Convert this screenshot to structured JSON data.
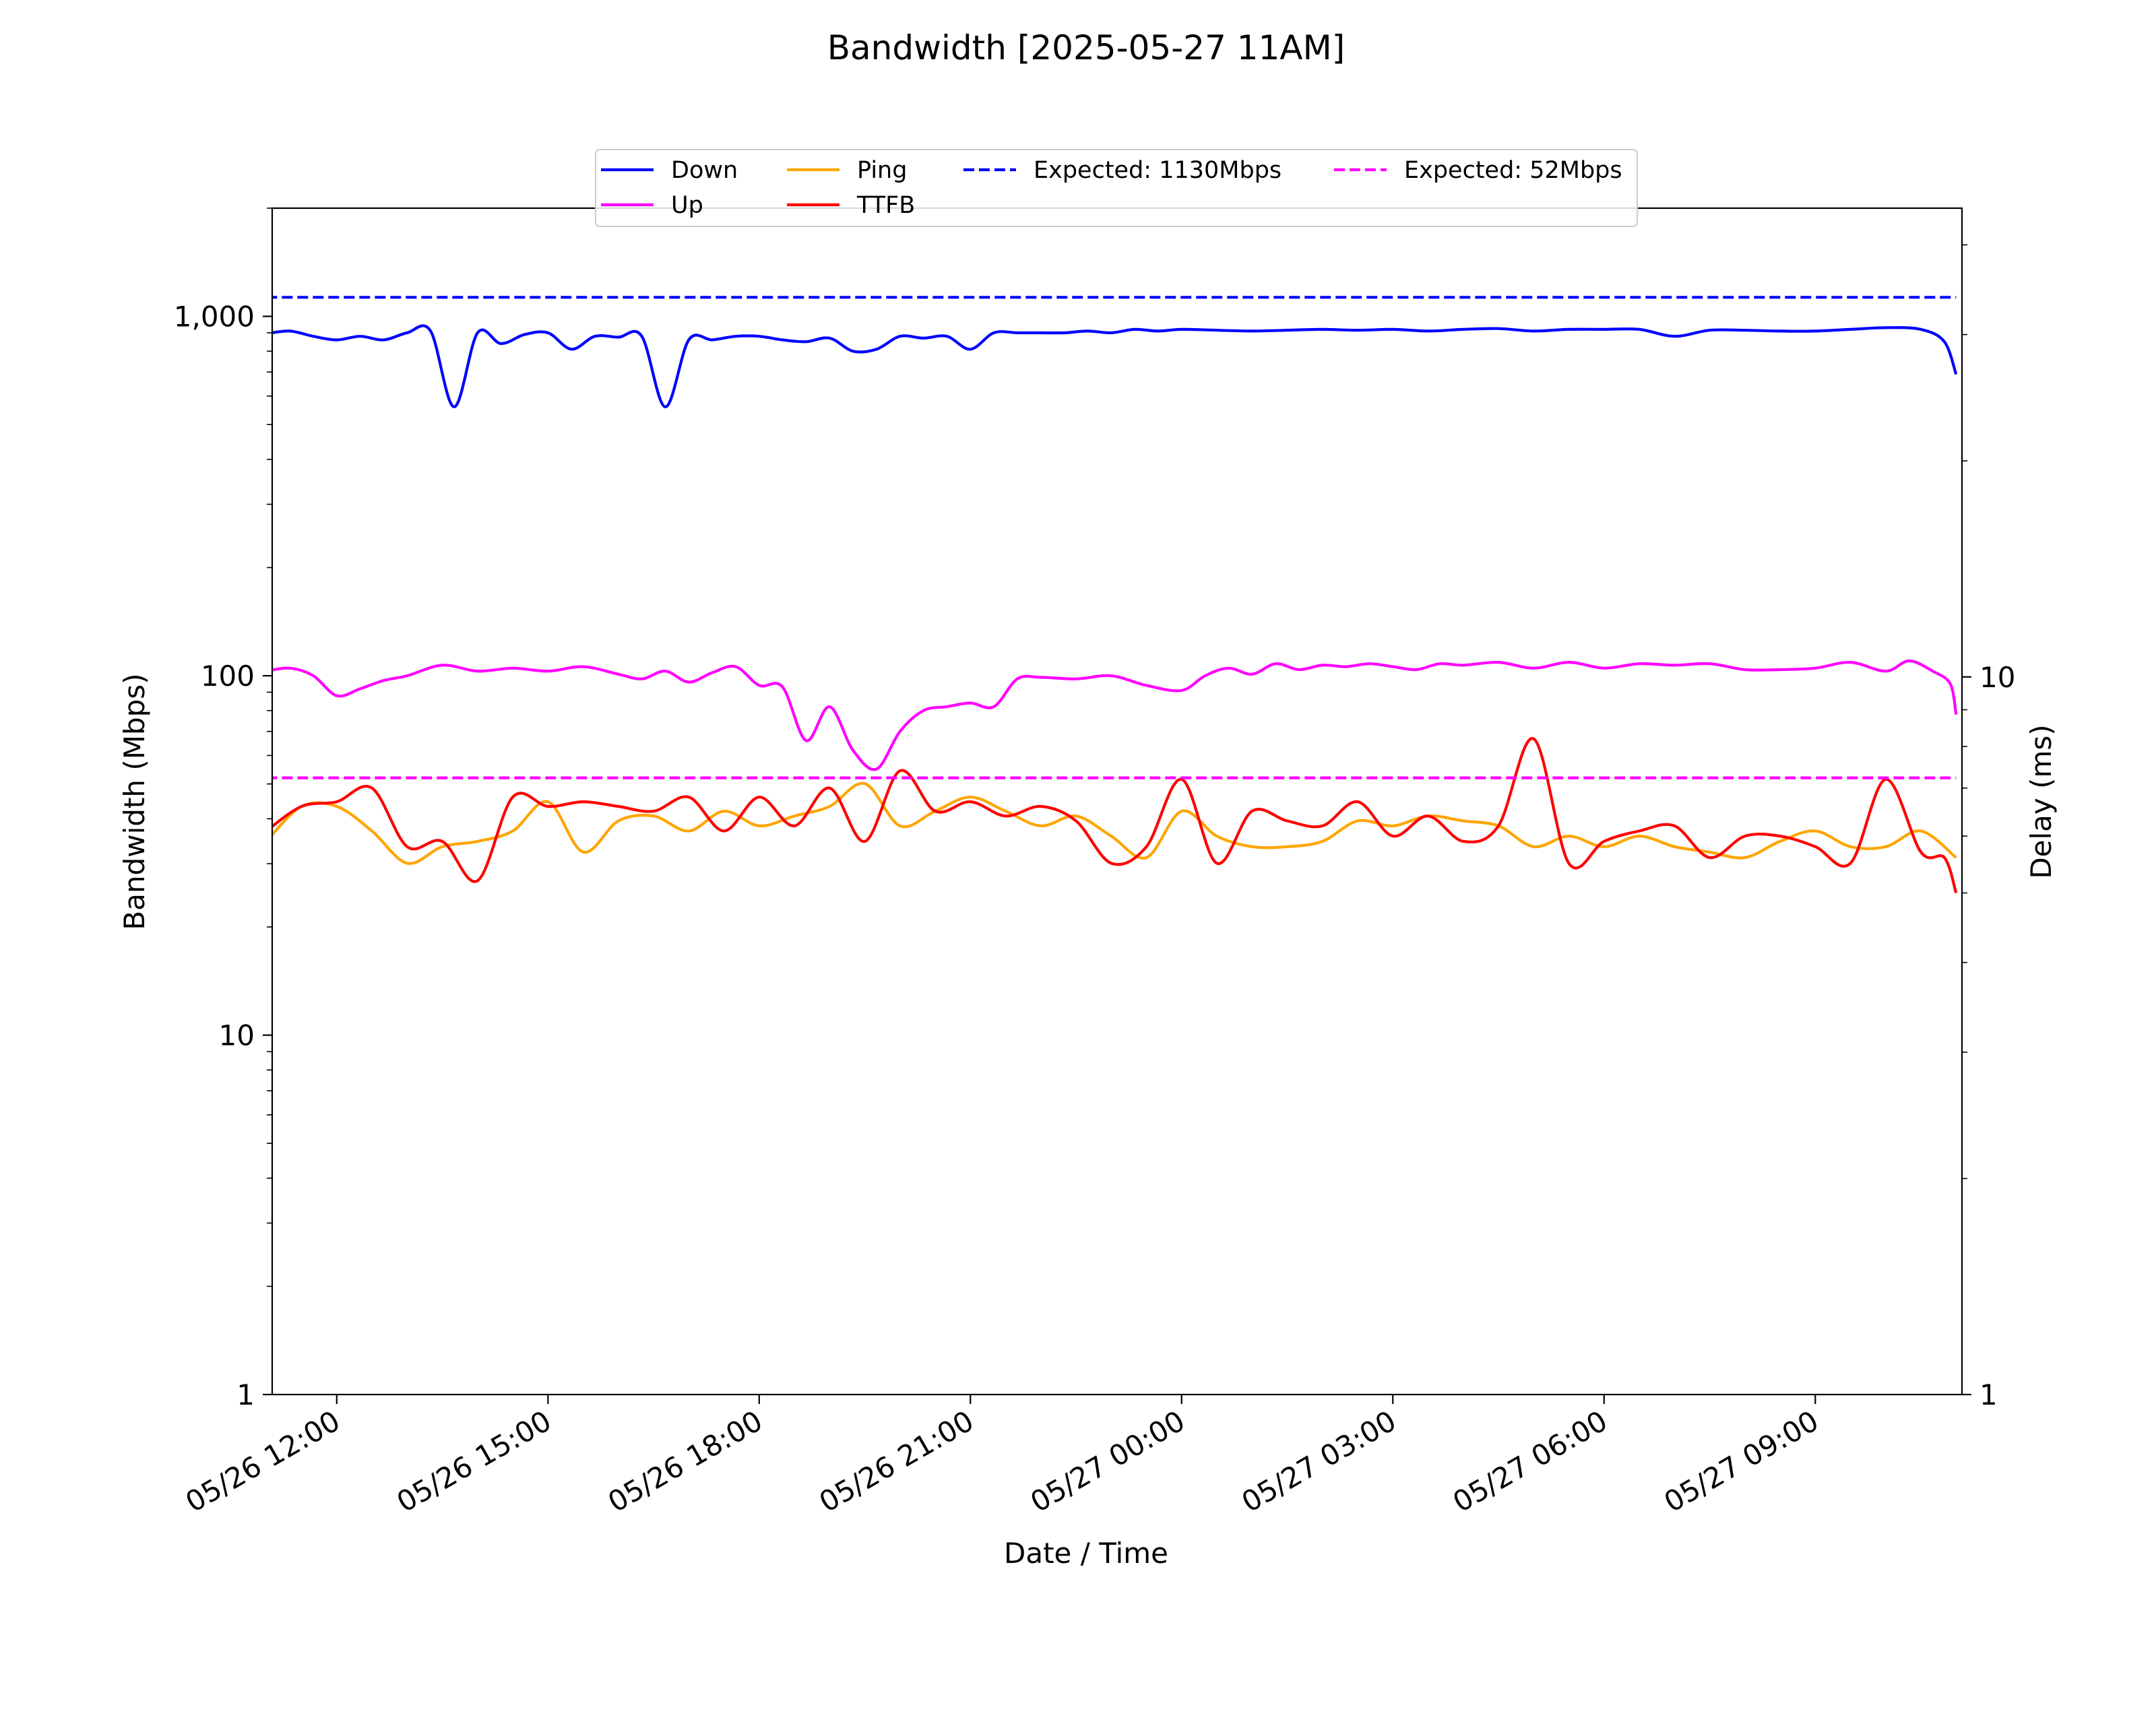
{
  "chart_data": {
    "type": "line",
    "title": "Bandwidth [2025-05-27 11AM]",
    "xlabel": "Date / Time",
    "ylabel": "Bandwidth (Mbps)",
    "y2label": "Delay (ms)",
    "yscale": "log",
    "y2scale": "log",
    "ylim": [
      1,
      2000
    ],
    "y2lim": [
      1,
      45
    ],
    "xlim": [
      "2025-05-26 11:05",
      "2025-05-27 11:05"
    ],
    "grid": false,
    "legend_position": "top-center",
    "x_ticks": [
      "05/26 12:00",
      "05/26 15:00",
      "05/26 18:00",
      "05/26 21:00",
      "05/27 00:00",
      "05/27 03:00",
      "05/27 06:00",
      "05/27 09:00"
    ],
    "y_ticks": [
      "1",
      "10",
      "100",
      "1,000"
    ],
    "y2_ticks": [
      "1",
      "10"
    ],
    "series": [
      {
        "name": "Down",
        "axis": "left",
        "color": "#0000ff",
        "style": "solid",
        "x": [
          "2025-05-26 11:00",
          "2025-05-26 11:20",
          "2025-05-26 11:40",
          "2025-05-26 12:00",
          "2025-05-26 12:20",
          "2025-05-26 12:40",
          "2025-05-26 13:00",
          "2025-05-26 13:20",
          "2025-05-26 13:40",
          "2025-05-26 14:00",
          "2025-05-26 14:20",
          "2025-05-26 14:40",
          "2025-05-26 15:00",
          "2025-05-26 15:20",
          "2025-05-26 15:40",
          "2025-05-26 16:00",
          "2025-05-26 16:20",
          "2025-05-26 16:40",
          "2025-05-26 17:00",
          "2025-05-26 17:20",
          "2025-05-26 17:40",
          "2025-05-26 18:00",
          "2025-05-26 18:20",
          "2025-05-26 18:40",
          "2025-05-26 19:00",
          "2025-05-26 19:20",
          "2025-05-26 19:40",
          "2025-05-26 20:00",
          "2025-05-26 20:20",
          "2025-05-26 20:40",
          "2025-05-26 21:00",
          "2025-05-26 21:20",
          "2025-05-26 21:40",
          "2025-05-26 22:00",
          "2025-05-26 22:20",
          "2025-05-26 22:40",
          "2025-05-26 23:00",
          "2025-05-26 23:20",
          "2025-05-26 23:40",
          "2025-05-27 00:00",
          "2025-05-27 00:30",
          "2025-05-27 01:00",
          "2025-05-27 01:30",
          "2025-05-27 02:00",
          "2025-05-27 02:30",
          "2025-05-27 03:00",
          "2025-05-27 03:30",
          "2025-05-27 04:00",
          "2025-05-27 04:30",
          "2025-05-27 05:00",
          "2025-05-27 05:30",
          "2025-05-27 06:00",
          "2025-05-27 06:30",
          "2025-05-27 07:00",
          "2025-05-27 07:30",
          "2025-05-27 08:00",
          "2025-05-27 08:30",
          "2025-05-27 09:00",
          "2025-05-27 09:30",
          "2025-05-27 10:00",
          "2025-05-27 10:30",
          "2025-05-27 10:50",
          "2025-05-27 11:00"
        ],
        "values": [
          895,
          910,
          880,
          860,
          880,
          860,
          900,
          910,
          560,
          900,
          840,
          890,
          900,
          810,
          880,
          875,
          880,
          560,
          860,
          860,
          880,
          880,
          860,
          850,
          870,
          800,
          810,
          880,
          870,
          880,
          810,
          900,
          900,
          900,
          900,
          910,
          900,
          920,
          910,
          920,
          915,
          910,
          915,
          920,
          915,
          920,
          910,
          920,
          925,
          910,
          920,
          920,
          920,
          880,
          915,
          915,
          910,
          910,
          920,
          930,
          920,
          850,
          690
        ]
      },
      {
        "name": "Up",
        "axis": "left",
        "color": "#ff00ff",
        "style": "solid",
        "x": [
          "2025-05-26 11:00",
          "2025-05-26 11:20",
          "2025-05-26 11:40",
          "2025-05-26 12:00",
          "2025-05-26 12:20",
          "2025-05-26 12:40",
          "2025-05-26 13:00",
          "2025-05-26 13:30",
          "2025-05-26 14:00",
          "2025-05-26 14:30",
          "2025-05-26 15:00",
          "2025-05-26 15:30",
          "2025-05-26 16:00",
          "2025-05-26 16:20",
          "2025-05-26 16:40",
          "2025-05-26 17:00",
          "2025-05-26 17:20",
          "2025-05-26 17:40",
          "2025-05-26 18:00",
          "2025-05-26 18:20",
          "2025-05-26 18:40",
          "2025-05-26 19:00",
          "2025-05-26 19:20",
          "2025-05-26 19:40",
          "2025-05-26 20:00",
          "2025-05-26 20:20",
          "2025-05-26 20:40",
          "2025-05-26 21:00",
          "2025-05-26 21:20",
          "2025-05-26 21:40",
          "2025-05-26 22:00",
          "2025-05-26 22:30",
          "2025-05-26 23:00",
          "2025-05-26 23:30",
          "2025-05-27 00:00",
          "2025-05-27 00:20",
          "2025-05-27 00:40",
          "2025-05-27 01:00",
          "2025-05-27 01:20",
          "2025-05-27 01:40",
          "2025-05-27 02:00",
          "2025-05-27 02:20",
          "2025-05-27 02:40",
          "2025-05-27 03:00",
          "2025-05-27 03:20",
          "2025-05-27 03:40",
          "2025-05-27 04:00",
          "2025-05-27 04:30",
          "2025-05-27 05:00",
          "2025-05-27 05:30",
          "2025-05-27 06:00",
          "2025-05-27 06:30",
          "2025-05-27 07:00",
          "2025-05-27 07:30",
          "2025-05-27 08:00",
          "2025-05-27 08:30",
          "2025-05-27 09:00",
          "2025-05-27 09:30",
          "2025-05-27 10:00",
          "2025-05-27 10:20",
          "2025-05-27 10:40",
          "2025-05-27 10:55",
          "2025-05-27 11:00"
        ],
        "values": [
          103,
          105,
          100,
          88,
          92,
          97,
          100,
          107,
          103,
          105,
          103,
          106,
          101,
          98,
          103,
          96,
          102,
          106,
          94,
          93,
          66,
          82,
          62,
          55,
          70,
          80,
          82,
          84,
          82,
          98,
          99,
          98,
          100,
          94,
          91,
          100,
          105,
          101,
          108,
          104,
          107,
          106,
          108,
          106,
          104,
          108,
          107,
          109,
          105,
          109,
          105,
          108,
          107,
          108,
          104,
          104,
          105,
          109,
          103,
          110,
          103,
          95,
          78
        ]
      },
      {
        "name": "Ping",
        "axis": "right",
        "color": "#ffa500",
        "style": "solid",
        "x": [
          "2025-05-26 11:00",
          "2025-05-26 11:30",
          "2025-05-26 12:00",
          "2025-05-26 12:30",
          "2025-05-26 13:00",
          "2025-05-26 13:30",
          "2025-05-26 14:00",
          "2025-05-26 14:30",
          "2025-05-26 15:00",
          "2025-05-26 15:30",
          "2025-05-26 16:00",
          "2025-05-26 16:30",
          "2025-05-26 17:00",
          "2025-05-26 17:30",
          "2025-05-26 18:00",
          "2025-05-26 18:30",
          "2025-05-26 19:00",
          "2025-05-26 19:30",
          "2025-05-26 20:00",
          "2025-05-26 20:30",
          "2025-05-26 21:00",
          "2025-05-26 21:30",
          "2025-05-26 22:00",
          "2025-05-26 22:30",
          "2025-05-26 23:00",
          "2025-05-26 23:30",
          "2025-05-27 00:00",
          "2025-05-27 00:30",
          "2025-05-27 01:00",
          "2025-05-27 01:30",
          "2025-05-27 02:00",
          "2025-05-27 02:30",
          "2025-05-27 03:00",
          "2025-05-27 03:30",
          "2025-05-27 04:00",
          "2025-05-27 04:30",
          "2025-05-27 05:00",
          "2025-05-27 05:30",
          "2025-05-27 06:00",
          "2025-05-27 06:30",
          "2025-05-27 07:00",
          "2025-05-27 07:30",
          "2025-05-27 08:00",
          "2025-05-27 08:30",
          "2025-05-27 09:00",
          "2025-05-27 09:30",
          "2025-05-27 10:00",
          "2025-05-27 10:30",
          "2025-05-27 11:00"
        ],
        "values": [
          5.9,
          6.6,
          6.6,
          6.1,
          5.5,
          5.8,
          5.9,
          6.1,
          6.7,
          5.7,
          6.3,
          6.4,
          6.1,
          6.5,
          6.2,
          6.4,
          6.6,
          7.1,
          6.2,
          6.5,
          6.8,
          6.5,
          6.2,
          6.4,
          6.0,
          5.6,
          6.5,
          6.0,
          5.8,
          5.8,
          5.9,
          6.3,
          6.2,
          6.4,
          6.3,
          6.2,
          5.8,
          6.0,
          5.8,
          6.0,
          5.8,
          5.7,
          5.6,
          5.9,
          6.1,
          5.8,
          5.8,
          6.1,
          5.6
        ]
      },
      {
        "name": "TTFB",
        "axis": "right",
        "color": "#ff0000",
        "style": "solid",
        "x": [
          "2025-05-26 11:00",
          "2025-05-26 11:30",
          "2025-05-26 12:00",
          "2025-05-26 12:30",
          "2025-05-26 13:00",
          "2025-05-26 13:30",
          "2025-05-26 14:00",
          "2025-05-26 14:30",
          "2025-05-26 15:00",
          "2025-05-26 15:30",
          "2025-05-26 16:00",
          "2025-05-26 16:30",
          "2025-05-26 17:00",
          "2025-05-26 17:30",
          "2025-05-26 18:00",
          "2025-05-26 18:30",
          "2025-05-26 19:00",
          "2025-05-26 19:30",
          "2025-05-26 20:00",
          "2025-05-26 20:30",
          "2025-05-26 21:00",
          "2025-05-26 21:30",
          "2025-05-26 22:00",
          "2025-05-26 22:30",
          "2025-05-26 23:00",
          "2025-05-26 23:30",
          "2025-05-27 00:00",
          "2025-05-27 00:30",
          "2025-05-27 01:00",
          "2025-05-27 01:30",
          "2025-05-27 02:00",
          "2025-05-27 02:30",
          "2025-05-27 03:00",
          "2025-05-27 03:30",
          "2025-05-27 04:00",
          "2025-05-27 04:30",
          "2025-05-27 05:00",
          "2025-05-27 05:30",
          "2025-05-27 06:00",
          "2025-05-27 06:30",
          "2025-05-27 07:00",
          "2025-05-27 07:30",
          "2025-05-27 08:00",
          "2025-05-27 08:30",
          "2025-05-27 09:00",
          "2025-05-27 09:30",
          "2025-05-27 10:00",
          "2025-05-27 10:30",
          "2025-05-27 10:50",
          "2025-05-27 11:00"
        ],
        "values": [
          6.1,
          6.6,
          6.7,
          7.0,
          5.8,
          5.9,
          5.2,
          6.8,
          6.6,
          6.7,
          6.6,
          6.5,
          6.8,
          6.1,
          6.8,
          6.2,
          7.0,
          5.9,
          7.4,
          6.5,
          6.7,
          6.4,
          6.6,
          6.3,
          5.5,
          5.8,
          7.2,
          5.5,
          6.5,
          6.3,
          6.2,
          6.7,
          6.0,
          6.4,
          5.9,
          6.2,
          8.2,
          5.5,
          5.9,
          6.1,
          6.2,
          5.6,
          6.0,
          6.0,
          5.8,
          5.5,
          7.2,
          5.7,
          5.6,
          5.0
        ]
      },
      {
        "name": "Expected: 1130Mbps",
        "axis": "left",
        "color": "#0000ff",
        "style": "dashed",
        "x": [
          "2025-05-26 11:00",
          "2025-05-27 11:00"
        ],
        "values": [
          1130,
          1130
        ]
      },
      {
        "name": "Expected: 52Mbps",
        "axis": "left",
        "color": "#ff00ff",
        "style": "dashed",
        "x": [
          "2025-05-26 11:00",
          "2025-05-27 11:00"
        ],
        "values": [
          52,
          52
        ]
      }
    ]
  }
}
